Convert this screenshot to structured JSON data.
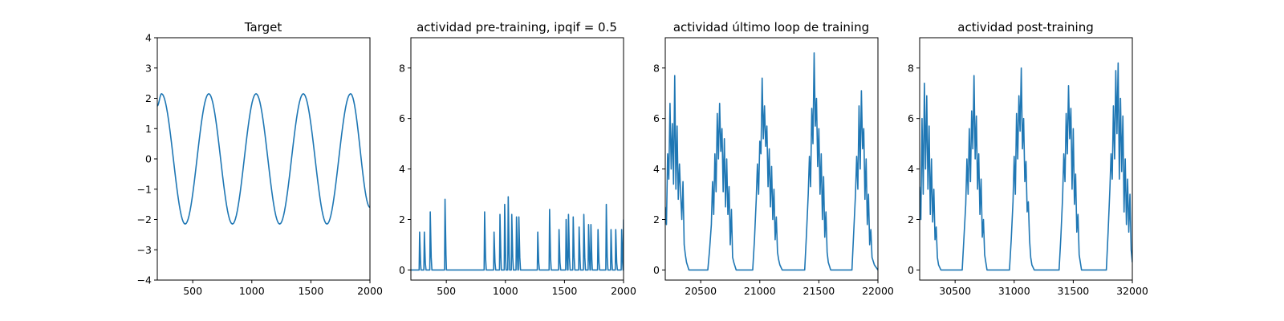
{
  "figure": {
    "background": "#ffffff",
    "line_color": "#1f77b4"
  },
  "chart_data": [
    {
      "type": "line",
      "title": "Target",
      "xlabel": "",
      "ylabel": "",
      "xlim": [
        200,
        2000
      ],
      "ylim": [
        -4,
        4
      ],
      "xticks": [
        500,
        1000,
        1500,
        2000
      ],
      "yticks": [
        -4,
        -3,
        -2,
        -1,
        0,
        1,
        2,
        3,
        4
      ],
      "grid": false,
      "series": [
        {
          "x": [
            200,
            236,
            436,
            636,
            836,
            1036,
            1236,
            1436,
            1636,
            1836,
            2000
          ],
          "y": [
            1.75,
            2.15,
            -2.15,
            2.15,
            -2.15,
            2.15,
            -2.15,
            2.15,
            -2.15,
            2.15,
            -1.6
          ]
        }
      ]
    },
    {
      "type": "line",
      "title": "actividad pre-training, ipqif = 0.5",
      "xlabel": "",
      "ylabel": "",
      "xlim": [
        200,
        2000
      ],
      "ylim": [
        -0.4,
        9.2
      ],
      "xticks": [
        500,
        1000,
        1500,
        2000
      ],
      "yticks": [
        0,
        2,
        4,
        6,
        8
      ],
      "grid": false,
      "series": [
        {
          "x": [
            200,
            270,
            274,
            282,
            286,
            310,
            314,
            322,
            328,
            360,
            364,
            372,
            378,
            485,
            489,
            497,
            501,
            820,
            824,
            832,
            838,
            900,
            904,
            912,
            918,
            950,
            954,
            962,
            966,
            990,
            994,
            1002,
            1006,
            1020,
            1024,
            1032,
            1036,
            1050,
            1054,
            1062,
            1068,
            1090,
            1094,
            1102,
            1106,
            1110,
            1114,
            1122,
            1128,
            1270,
            1274,
            1282,
            1288,
            1370,
            1374,
            1382,
            1388,
            1450,
            1454,
            1462,
            1468,
            1510,
            1514,
            1522,
            1526,
            1530,
            1534,
            1542,
            1548,
            1570,
            1574,
            1582,
            1588,
            1620,
            1624,
            1632,
            1636,
            1660,
            1664,
            1672,
            1678,
            1700,
            1704,
            1712,
            1716,
            1720,
            1724,
            1732,
            1736,
            1780,
            1784,
            1792,
            1798,
            1850,
            1854,
            1862,
            1868,
            1890,
            1894,
            1902,
            1906,
            1930,
            1934,
            1942,
            1948,
            1980,
            1984,
            1992,
            1996,
            2000
          ],
          "y": [
            0,
            0,
            1.5,
            0.3,
            0,
            0,
            1.5,
            0.3,
            0,
            0,
            2.3,
            0.5,
            0,
            0,
            2.8,
            0.6,
            0,
            0,
            2.3,
            0.5,
            0,
            0,
            1.5,
            0.3,
            0,
            0,
            2.2,
            0.5,
            0,
            0,
            2.6,
            0.5,
            0,
            0,
            2.9,
            0.6,
            0,
            0,
            2.2,
            0.5,
            0,
            0,
            2.1,
            0.5,
            0,
            0,
            2.1,
            0.5,
            0,
            0,
            1.5,
            0.3,
            0,
            0,
            2.4,
            0.5,
            0,
            0,
            1.6,
            0.3,
            0,
            0,
            2.0,
            0.4,
            0,
            0,
            2.2,
            0.5,
            0,
            0,
            2.1,
            0.5,
            0,
            0,
            1.7,
            0.4,
            0,
            0,
            2.2,
            0.5,
            0,
            0,
            1.8,
            0.4,
            0,
            0,
            1.8,
            0.4,
            0,
            0,
            1.6,
            0.3,
            0,
            0,
            2.6,
            0.5,
            0,
            0,
            1.6,
            0.3,
            0,
            0,
            1.6,
            0.3,
            0,
            0,
            1.6,
            0.3,
            0,
            2.0
          ]
        }
      ]
    },
    {
      "type": "line",
      "title": "actividad último loop de training",
      "xlabel": "",
      "ylabel": "",
      "xlim": [
        20200,
        22000
      ],
      "ylim": [
        -0.4,
        9.2
      ],
      "xticks": [
        20500,
        21000,
        21500,
        22000
      ],
      "yticks": [
        0,
        2,
        4,
        6,
        8
      ],
      "grid": false,
      "series": [
        {
          "x": [
            20200,
            20210,
            20220,
            20230,
            20240,
            20250,
            20260,
            20270,
            20280,
            20290,
            20300,
            20310,
            20320,
            20330,
            20340,
            20350,
            20360,
            20370,
            20380,
            20400,
            20560,
            20575,
            20590,
            20600,
            20610,
            20620,
            20630,
            20640,
            20650,
            20660,
            20670,
            20680,
            20690,
            20700,
            20710,
            20720,
            20730,
            20740,
            20750,
            20760,
            20770,
            20780,
            20800,
            20940,
            20955,
            20970,
            20980,
            20990,
            21000,
            21010,
            21020,
            21030,
            21040,
            21050,
            21060,
            21070,
            21080,
            21090,
            21100,
            21110,
            21120,
            21130,
            21140,
            21150,
            21160,
            21170,
            21190,
            21380,
            21395,
            21410,
            21420,
            21430,
            21440,
            21450,
            21460,
            21470,
            21480,
            21490,
            21500,
            21510,
            21520,
            21530,
            21540,
            21550,
            21560,
            21570,
            21580,
            21600,
            21780,
            21795,
            21810,
            21820,
            21830,
            21840,
            21850,
            21860,
            21870,
            21880,
            21890,
            21900,
            21910,
            21920,
            21930,
            21940,
            21950,
            21970,
            22000
          ],
          "y": [
            2.5,
            1.8,
            4.6,
            3.6,
            6.6,
            4.0,
            5.8,
            3.4,
            7.7,
            3.2,
            5.7,
            2.8,
            4.2,
            3.0,
            2.0,
            3.5,
            1.0,
            0.6,
            0.3,
            0,
            0,
            0.8,
            1.8,
            3.5,
            2.2,
            4.6,
            3.1,
            6.2,
            4.4,
            6.6,
            4.7,
            5.6,
            3.1,
            5.2,
            2.5,
            4.4,
            2.2,
            3.3,
            1.0,
            2.4,
            0.5,
            0.3,
            0,
            0,
            1.2,
            2.8,
            4.2,
            3.0,
            5.1,
            4.6,
            7.6,
            5.2,
            6.5,
            4.9,
            5.7,
            3.3,
            4.8,
            2.5,
            4.1,
            2.0,
            3.2,
            1.2,
            2.1,
            0.7,
            0.4,
            0.2,
            0,
            0,
            1.4,
            3.0,
            4.5,
            3.3,
            6.4,
            5.0,
            8.6,
            5.7,
            6.8,
            4.1,
            5.6,
            3.0,
            4.6,
            2.0,
            3.7,
            1.3,
            2.3,
            0.7,
            0.3,
            0,
            0,
            1.5,
            3.0,
            4.5,
            3.2,
            6.5,
            4.0,
            7.1,
            4.8,
            5.6,
            2.8,
            4.4,
            1.8,
            3.0,
            1.0,
            1.6,
            0.5,
            0.2,
            0
          ]
        }
      ]
    },
    {
      "type": "line",
      "title": "actividad post-training",
      "xlabel": "",
      "ylabel": "",
      "xlim": [
        30200,
        32000
      ],
      "ylim": [
        -0.4,
        9.2
      ],
      "xticks": [
        30500,
        31000,
        31500,
        32000
      ],
      "yticks": [
        0,
        2,
        4,
        6,
        8
      ],
      "grid": false,
      "series": [
        {
          "x": [
            30200,
            30210,
            30220,
            30230,
            30240,
            30250,
            30260,
            30270,
            30280,
            30290,
            30300,
            30310,
            30320,
            30330,
            30340,
            30350,
            30360,
            30380,
            30560,
            30575,
            30590,
            30600,
            30610,
            30620,
            30630,
            30640,
            30650,
            30660,
            30670,
            30680,
            30690,
            30700,
            30710,
            30720,
            30730,
            30740,
            30750,
            30770,
            30960,
            30975,
            30990,
            31000,
            31010,
            31020,
            31030,
            31040,
            31050,
            31060,
            31070,
            31080,
            31090,
            31100,
            31110,
            31120,
            31130,
            31140,
            31150,
            31170,
            31380,
            31395,
            31410,
            31420,
            31430,
            31440,
            31450,
            31460,
            31470,
            31480,
            31490,
            31500,
            31510,
            31520,
            31530,
            31540,
            31550,
            31570,
            31780,
            31795,
            31810,
            31820,
            31830,
            31840,
            31850,
            31860,
            31870,
            31880,
            31890,
            31900,
            31910,
            31920,
            31930,
            31940,
            31950,
            31960,
            31970,
            31980,
            31990,
            32000
          ],
          "y": [
            3.3,
            2.0,
            6.0,
            3.0,
            7.4,
            4.0,
            6.9,
            3.2,
            5.7,
            2.2,
            4.4,
            1.9,
            3.2,
            1.2,
            1.7,
            0.5,
            0.2,
            0,
            0,
            1.3,
            2.6,
            4.4,
            3.0,
            5.6,
            3.5,
            6.3,
            4.8,
            7.7,
            4.4,
            6.1,
            3.2,
            4.6,
            2.2,
            3.6,
            1.3,
            2.0,
            0.6,
            0,
            0,
            1.2,
            2.7,
            4.5,
            3.0,
            6.2,
            4.4,
            6.9,
            5.5,
            8.0,
            4.8,
            6.0,
            3.5,
            4.3,
            2.3,
            2.7,
            1.2,
            0.5,
            0.2,
            0,
            0,
            1.3,
            2.9,
            4.6,
            3.5,
            6.2,
            4.6,
            7.3,
            5.2,
            6.4,
            3.2,
            5.6,
            2.6,
            3.8,
            1.5,
            2.2,
            0.6,
            0,
            0,
            1.5,
            3.2,
            4.6,
            3.6,
            6.5,
            4.4,
            7.9,
            5.4,
            8.2,
            3.6,
            6.8,
            3.9,
            6.1,
            2.3,
            4.4,
            1.8,
            3.6,
            1.5,
            3.0,
            0.8,
            0.3
          ]
        }
      ]
    }
  ]
}
